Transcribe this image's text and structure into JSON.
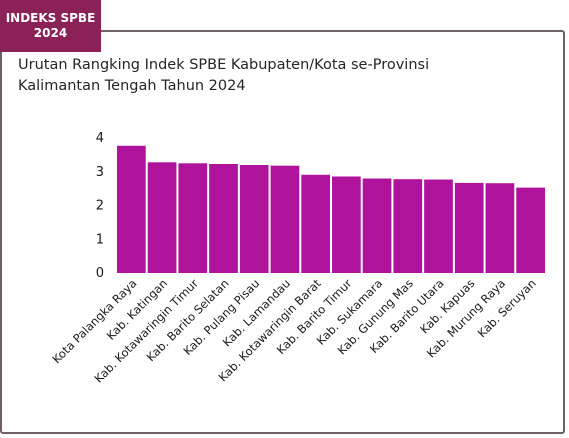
{
  "badge": {
    "line1": "INDEKS SPBE",
    "line2": "2024"
  },
  "title": {
    "line1": "Urutan Rangking Indek SPBE Kabupaten/Kota se-Provinsi",
    "line2": "Kalimantan Tengah Tahun 2024"
  },
  "colors": {
    "bar": "#b0139b",
    "badge": "#8a2157",
    "border": "#6e6262"
  },
  "chart_data": {
    "type": "bar",
    "categories": [
      "Kota Palangka Raya",
      "Kab. Katingan",
      "Kab. Kotawaringin Timur",
      "Kab. Barito Selatan",
      "Kab. Pulang Pisau",
      "Kab. Lamandau",
      "Kab. Kotawaringin Barat",
      "Kab. Barito Timur",
      "Kab. Sukamara",
      "Kab. Gunung Mas",
      "Kab. Barito Utara",
      "Kab. Kapuas",
      "Kab. Murung Raya",
      "Kab. Seruyan"
    ],
    "values": [
      3.77,
      3.28,
      3.25,
      3.23,
      3.2,
      3.18,
      2.91,
      2.86,
      2.8,
      2.78,
      2.77,
      2.67,
      2.66,
      2.53
    ],
    "yticks": [
      0,
      1,
      2,
      3,
      4
    ],
    "ylim": [
      0,
      4
    ],
    "grid": false,
    "legend": "none"
  }
}
